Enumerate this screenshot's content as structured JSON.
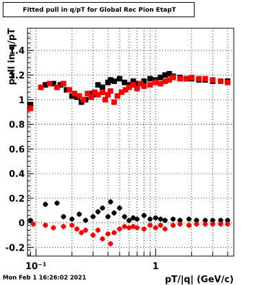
{
  "footer": {
    "timestamp": "Mon Feb  1 16:26:02 2021"
  },
  "chart_data": {
    "type": "scatter",
    "title": "Fitted pull in q/pT for Global Rec Pion EtapT",
    "xlabel": "pT/|q| (GeV/c)",
    "ylabel": "pull in q/pT",
    "xscale": "log",
    "xlim": [
      0.085,
      4.5
    ],
    "ylim": [
      -0.27,
      1.58
    ],
    "grid": true,
    "xticks": [
      {
        "v": 0.1,
        "label": "10⁻¹"
      },
      {
        "v": 1,
        "label": "1"
      }
    ],
    "yticks": [
      -0.2,
      0,
      0.2,
      0.4,
      0.6,
      0.8,
      1,
      1.2,
      1.4
    ],
    "series": [
      {
        "color": "#000000",
        "marker": "circle",
        "points": [
          [
            0.09,
            0.02
          ],
          [
            0.12,
            0.15
          ],
          [
            0.15,
            0.16
          ],
          [
            0.17,
            0.05
          ],
          [
            0.2,
            0.03
          ],
          [
            0.23,
            0.07
          ],
          [
            0.26,
            0.02
          ],
          [
            0.3,
            0.05
          ],
          [
            0.33,
            0.09
          ],
          [
            0.36,
            0.12
          ],
          [
            0.4,
            0.05
          ],
          [
            0.42,
            0.17
          ],
          [
            0.45,
            0.08
          ],
          [
            0.5,
            0.12
          ],
          [
            0.55,
            0.05
          ],
          [
            0.6,
            0.02
          ],
          [
            0.65,
            0.04
          ],
          [
            0.7,
            0.03
          ],
          [
            0.8,
            0.06
          ],
          [
            0.9,
            0.03
          ],
          [
            1.0,
            0.04
          ],
          [
            1.1,
            0.03
          ],
          [
            1.2,
            0.02
          ],
          [
            1.4,
            0.03
          ],
          [
            1.6,
            0.02
          ],
          [
            1.9,
            0.03
          ],
          [
            2.2,
            0.02
          ],
          [
            2.6,
            0.02
          ],
          [
            3.0,
            0.02
          ],
          [
            3.5,
            0.02
          ],
          [
            4.0,
            0.02
          ]
        ]
      },
      {
        "color": "#ff0000",
        "marker": "circle",
        "points": [
          [
            0.095,
            -0.01
          ],
          [
            0.12,
            -0.02
          ],
          [
            0.14,
            -0.04
          ],
          [
            0.17,
            -0.03
          ],
          [
            0.2,
            -0.02
          ],
          [
            0.22,
            -0.05
          ],
          [
            0.24,
            -0.08
          ],
          [
            0.26,
            -0.06
          ],
          [
            0.3,
            -0.1
          ],
          [
            0.33,
            -0.06
          ],
          [
            0.36,
            -0.13
          ],
          [
            0.4,
            -0.09
          ],
          [
            0.42,
            -0.17
          ],
          [
            0.45,
            -0.08
          ],
          [
            0.5,
            -0.05
          ],
          [
            0.55,
            -0.03
          ],
          [
            0.6,
            -0.04
          ],
          [
            0.65,
            -0.03
          ],
          [
            0.7,
            -0.04
          ],
          [
            0.8,
            -0.05
          ],
          [
            0.9,
            -0.02
          ],
          [
            1.0,
            -0.04
          ],
          [
            1.1,
            -0.02
          ],
          [
            1.2,
            -0.05
          ],
          [
            1.4,
            -0.02
          ],
          [
            1.6,
            -0.01
          ],
          [
            1.9,
            -0.02
          ],
          [
            2.2,
            -0.01
          ],
          [
            2.6,
            -0.01
          ],
          [
            3.0,
            -0.01
          ],
          [
            3.5,
            -0.01
          ],
          [
            4.0,
            -0.01
          ]
        ]
      },
      {
        "color": "#000000",
        "marker": "square",
        "points": [
          [
            0.09,
            0.96
          ],
          [
            0.12,
            1.12
          ],
          [
            0.14,
            1.13
          ],
          [
            0.16,
            1.12
          ],
          [
            0.18,
            1.08
          ],
          [
            0.2,
            1.03
          ],
          [
            0.22,
            1.02
          ],
          [
            0.24,
            0.98
          ],
          [
            0.26,
            1.0
          ],
          [
            0.28,
            1.05
          ],
          [
            0.3,
            1.04
          ],
          [
            0.33,
            1.12
          ],
          [
            0.36,
            1.1
          ],
          [
            0.4,
            1.14
          ],
          [
            0.42,
            1.16
          ],
          [
            0.45,
            1.15
          ],
          [
            0.5,
            1.17
          ],
          [
            0.55,
            1.14
          ],
          [
            0.6,
            1.12
          ],
          [
            0.65,
            1.15
          ],
          [
            0.7,
            1.13
          ],
          [
            0.8,
            1.15
          ],
          [
            0.9,
            1.17
          ],
          [
            1.0,
            1.16
          ],
          [
            1.1,
            1.18
          ],
          [
            1.2,
            1.2
          ],
          [
            1.3,
            1.21
          ],
          [
            1.4,
            1.19
          ],
          [
            1.6,
            1.18
          ],
          [
            1.8,
            1.17
          ],
          [
            2.0,
            1.17
          ],
          [
            2.3,
            1.16
          ],
          [
            2.6,
            1.16
          ],
          [
            3.0,
            1.15
          ],
          [
            3.5,
            1.15
          ],
          [
            4.0,
            1.15
          ]
        ]
      },
      {
        "color": "#ff0000",
        "marker": "square",
        "points": [
          [
            0.09,
            0.93
          ],
          [
            0.11,
            1.1
          ],
          [
            0.13,
            1.13
          ],
          [
            0.15,
            1.1
          ],
          [
            0.17,
            1.13
          ],
          [
            0.19,
            1.08
          ],
          [
            0.21,
            1.05
          ],
          [
            0.23,
            1.03
          ],
          [
            0.25,
            1.0
          ],
          [
            0.27,
            1.05
          ],
          [
            0.29,
            1.02
          ],
          [
            0.31,
            1.06
          ],
          [
            0.33,
            1.04
          ],
          [
            0.36,
            1.06
          ],
          [
            0.38,
            1.0
          ],
          [
            0.4,
            1.04
          ],
          [
            0.42,
            1.07
          ],
          [
            0.45,
            0.98
          ],
          [
            0.48,
            1.03
          ],
          [
            0.52,
            1.06
          ],
          [
            0.56,
            1.08
          ],
          [
            0.6,
            1.1
          ],
          [
            0.65,
            1.12
          ],
          [
            0.7,
            1.09
          ],
          [
            0.75,
            1.13
          ],
          [
            0.8,
            1.11
          ],
          [
            0.9,
            1.12
          ],
          [
            1.0,
            1.14
          ],
          [
            1.1,
            1.13
          ],
          [
            1.2,
            1.15
          ],
          [
            1.3,
            1.16
          ],
          [
            1.4,
            1.18
          ],
          [
            1.6,
            1.17
          ],
          [
            1.8,
            1.17
          ],
          [
            2.0,
            1.18
          ],
          [
            2.3,
            1.17
          ],
          [
            2.6,
            1.17
          ],
          [
            3.0,
            1.16
          ],
          [
            3.5,
            1.15
          ],
          [
            4.0,
            1.14
          ]
        ]
      }
    ]
  }
}
